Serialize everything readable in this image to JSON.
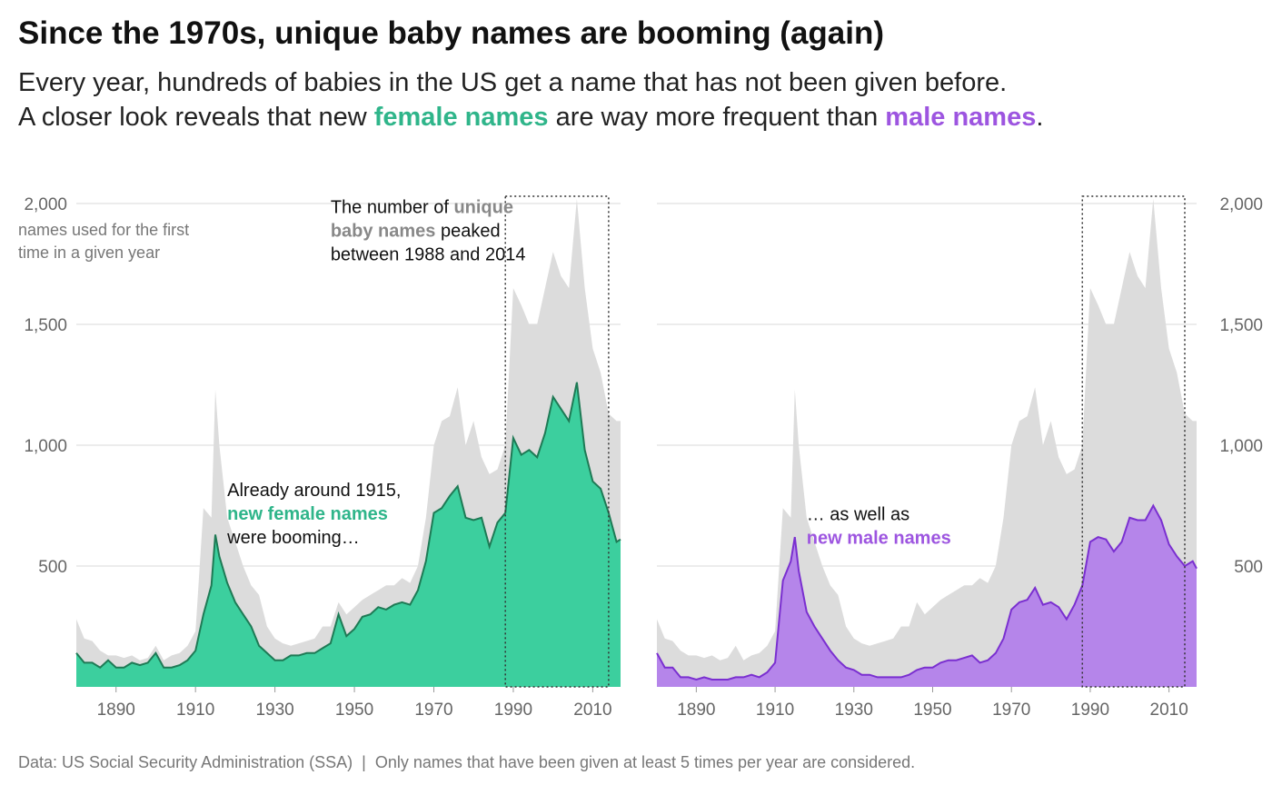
{
  "header": {
    "title": "Since the 1970s, unique baby names are booming (again)",
    "subtitle": [
      [
        {
          "text": "Every year, hundreds of babies in the US get a name that has not been given before."
        }
      ],
      [
        {
          "text": "A closer look reveals that new "
        },
        {
          "text": "female names",
          "color": "#2fb58a",
          "bold": true
        },
        {
          "text": " are way more frequent than "
        },
        {
          "text": "male names",
          "color": "#9d55e0",
          "bold": true
        },
        {
          "text": "."
        }
      ]
    ]
  },
  "chart_data": [
    {
      "type": "area",
      "axis_side": "left",
      "axis_label": [
        "names used for the first",
        "time in a given year"
      ],
      "xlim": [
        1880,
        2017
      ],
      "ylim": [
        0,
        2000
      ],
      "xticks": [
        1890,
        1910,
        1930,
        1950,
        1970,
        1990,
        2010
      ],
      "yticks": [
        500,
        {
          "value": 1000,
          "label": "1,000"
        },
        {
          "value": 1500,
          "label": "1,500"
        },
        {
          "value": 2000,
          "label": "2,000"
        }
      ],
      "grid": true,
      "highlight": [
        1988,
        2014
      ],
      "x": [
        1880,
        1882,
        1884,
        1886,
        1888,
        1890,
        1892,
        1894,
        1896,
        1898,
        1900,
        1902,
        1904,
        1906,
        1908,
        1910,
        1912,
        1914,
        1915,
        1916,
        1918,
        1920,
        1922,
        1924,
        1926,
        1928,
        1930,
        1932,
        1934,
        1936,
        1938,
        1940,
        1942,
        1944,
        1946,
        1948,
        1950,
        1952,
        1954,
        1956,
        1958,
        1960,
        1962,
        1964,
        1966,
        1968,
        1970,
        1972,
        1974,
        1976,
        1978,
        1980,
        1982,
        1984,
        1986,
        1988,
        1990,
        1992,
        1994,
        1996,
        1998,
        2000,
        2002,
        2004,
        2006,
        2008,
        2010,
        2012,
        2014,
        2016,
        2017
      ],
      "series": [
        {
          "color": "#dcdcdc",
          "values": [
            280,
            200,
            190,
            150,
            130,
            130,
            120,
            130,
            110,
            120,
            170,
            110,
            130,
            140,
            170,
            230,
            740,
            700,
            1230,
            1000,
            700,
            600,
            500,
            420,
            380,
            250,
            200,
            180,
            170,
            180,
            190,
            200,
            250,
            250,
            350,
            300,
            330,
            360,
            380,
            400,
            420,
            420,
            450,
            430,
            500,
            700,
            1000,
            1100,
            1120,
            1240,
            1000,
            1100,
            950,
            880,
            900,
            1000,
            1650,
            1580,
            1500,
            1500,
            1650,
            1800,
            1700,
            1650,
            2020,
            1650,
            1400,
            1300,
            1130,
            1100,
            1100
          ]
        },
        {
          "color": "#3ccf9e",
          "line_color": "#1e7a55",
          "values": [
            140,
            100,
            100,
            80,
            110,
            80,
            80,
            100,
            90,
            100,
            140,
            80,
            80,
            90,
            110,
            150,
            300,
            420,
            630,
            540,
            430,
            350,
            300,
            250,
            170,
            140,
            110,
            110,
            130,
            130,
            140,
            140,
            160,
            180,
            300,
            210,
            240,
            290,
            300,
            330,
            320,
            340,
            350,
            340,
            400,
            520,
            720,
            740,
            790,
            830,
            700,
            690,
            700,
            580,
            680,
            720,
            1030,
            960,
            980,
            950,
            1050,
            1200,
            1150,
            1100,
            1260,
            980,
            850,
            820,
            720,
            600,
            610
          ]
        }
      ],
      "annotations": [
        {
          "x": 1944,
          "y": 1960,
          "lines": [
            [
              {
                "text": "The number of "
              },
              {
                "text": "unique",
                "color": "#888888",
                "bold": true
              }
            ],
            [
              {
                "text": "baby names",
                "color": "#888888",
                "bold": true
              },
              {
                "text": " peaked"
              }
            ],
            [
              {
                "text": "between 1988 and 2014"
              }
            ]
          ]
        },
        {
          "x": 1918,
          "y": 790,
          "lines": [
            [
              {
                "text": "Already around 1915,"
              }
            ],
            [
              {
                "text": "new female names",
                "color": "#2fb58a",
                "bold": true
              }
            ],
            [
              {
                "text": "were booming…"
              }
            ]
          ]
        }
      ]
    },
    {
      "type": "area",
      "axis_side": "right",
      "xlim": [
        1880,
        2017
      ],
      "ylim": [
        0,
        2000
      ],
      "xticks": [
        1890,
        1910,
        1930,
        1950,
        1970,
        1990,
        2010
      ],
      "yticks": [
        500,
        {
          "value": 1000,
          "label": "1,000"
        },
        {
          "value": 1500,
          "label": "1,500"
        },
        {
          "value": 2000,
          "label": "2,000"
        }
      ],
      "grid": true,
      "highlight": [
        1988,
        2014
      ],
      "x": [
        1880,
        1882,
        1884,
        1886,
        1888,
        1890,
        1892,
        1894,
        1896,
        1898,
        1900,
        1902,
        1904,
        1906,
        1908,
        1910,
        1912,
        1914,
        1915,
        1916,
        1918,
        1920,
        1922,
        1924,
        1926,
        1928,
        1930,
        1932,
        1934,
        1936,
        1938,
        1940,
        1942,
        1944,
        1946,
        1948,
        1950,
        1952,
        1954,
        1956,
        1958,
        1960,
        1962,
        1964,
        1966,
        1968,
        1970,
        1972,
        1974,
        1976,
        1978,
        1980,
        1982,
        1984,
        1986,
        1988,
        1990,
        1992,
        1994,
        1996,
        1998,
        2000,
        2002,
        2004,
        2006,
        2008,
        2010,
        2012,
        2014,
        2016,
        2017
      ],
      "series": [
        {
          "color": "#dcdcdc",
          "values": [
            280,
            200,
            190,
            150,
            130,
            130,
            120,
            130,
            110,
            120,
            170,
            110,
            130,
            140,
            170,
            230,
            740,
            700,
            1230,
            1000,
            700,
            600,
            500,
            420,
            380,
            250,
            200,
            180,
            170,
            180,
            190,
            200,
            250,
            250,
            350,
            300,
            330,
            360,
            380,
            400,
            420,
            420,
            450,
            430,
            500,
            700,
            1000,
            1100,
            1120,
            1240,
            1000,
            1100,
            950,
            880,
            900,
            1000,
            1650,
            1580,
            1500,
            1500,
            1650,
            1800,
            1700,
            1650,
            2020,
            1650,
            1400,
            1300,
            1130,
            1100,
            1100
          ]
        },
        {
          "color": "#b585ea",
          "line_color": "#7a2fd0",
          "values": [
            140,
            80,
            80,
            40,
            40,
            30,
            40,
            30,
            30,
            30,
            40,
            40,
            50,
            40,
            60,
            100,
            440,
            520,
            620,
            480,
            310,
            250,
            200,
            150,
            110,
            80,
            70,
            50,
            50,
            40,
            40,
            40,
            40,
            50,
            70,
            80,
            80,
            100,
            110,
            110,
            120,
            130,
            100,
            110,
            140,
            200,
            320,
            350,
            360,
            410,
            340,
            350,
            330,
            280,
            340,
            420,
            600,
            620,
            610,
            560,
            600,
            700,
            690,
            690,
            750,
            690,
            590,
            540,
            500,
            520,
            490
          ]
        }
      ],
      "annotations": [
        {
          "x": 1918,
          "y": 690,
          "lines": [
            [
              {
                "text": "… as well as"
              }
            ],
            [
              {
                "text": "new male names",
                "color": "#9d55e0",
                "bold": true
              }
            ]
          ]
        }
      ]
    }
  ],
  "footer": "Data: US Social Security Administration (SSA)  |  Only names that have been given at least 5 times per year are considered."
}
